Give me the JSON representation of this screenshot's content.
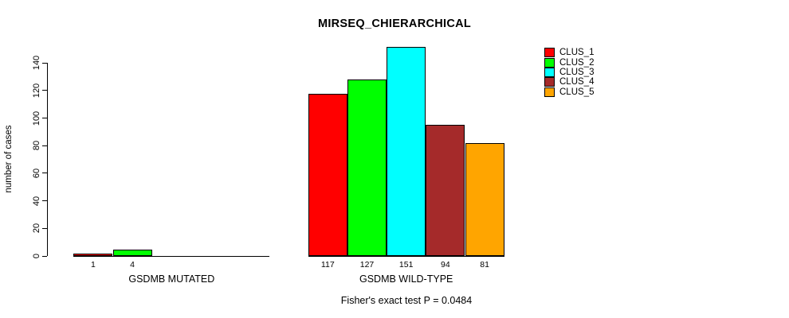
{
  "chart_data": {
    "type": "bar",
    "title": "MIRSEQ_CHIERARCHICAL",
    "ylabel": "number of cases",
    "xlabel": "",
    "ylim": [
      0,
      151
    ],
    "yticks": [
      0,
      20,
      40,
      60,
      80,
      100,
      120,
      140
    ],
    "grid": false,
    "legend_position": "top-right",
    "series_labels": [
      "CLUS_1",
      "CLUS_2",
      "CLUS_3",
      "CLUS_4",
      "CLUS_5"
    ],
    "series_colors": [
      "#ff0000",
      "#00ff00",
      "#00ffff",
      "#a52a2a",
      "#ffa500"
    ],
    "groups": [
      {
        "label": "GSDMB MUTATED",
        "values": [
          1,
          4,
          0,
          0,
          0
        ],
        "value_labels": [
          "1",
          "4",
          "",
          "",
          ""
        ]
      },
      {
        "label": "GSDMB WILD-TYPE",
        "values": [
          117,
          127,
          151,
          94,
          81
        ],
        "value_labels": [
          "117",
          "127",
          "151",
          "94",
          "81"
        ]
      }
    ],
    "annotation": "Fisher's exact test P = 0.0484"
  }
}
